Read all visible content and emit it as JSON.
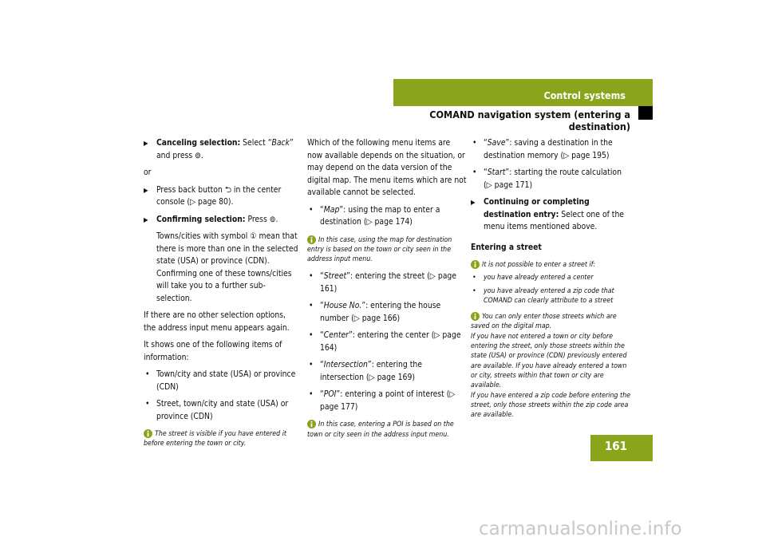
{
  "header": {
    "section": "Control systems",
    "subtitle": "COMAND navigation system (entering a destination)"
  },
  "page_number": "161",
  "watermark": "carmanualsonline.info",
  "columns": [
    {
      "blocks": [
        {
          "parts": [
            "Canceling selection:",
            " Select “",
            "Back",
            "” and press ⊚."
          ]
        },
        {
          "parts": [
            "or"
          ]
        },
        {
          "parts": [
            "Press back button ⮌ in the center console (▷ page 80)."
          ]
        },
        {
          "parts": [
            "Confirming selection:",
            " Press ⊚."
          ]
        },
        {
          "parts": [
            "Towns/cities with symbol ① mean that there is more than one in the selected state (USA) or province (CDN). Confirming one of these towns/cities will take you to a further sub-selection."
          ]
        },
        {
          "parts": [
            "If there are no other selection options, the address input menu appears again."
          ]
        },
        {
          "parts": [
            "It shows one of the following items of information:"
          ]
        },
        {
          "parts": [
            "Town/city and state (USA) or province (CDN)"
          ]
        },
        {
          "parts": [
            "Street, town/city and state (USA) or province (CDN)"
          ]
        },
        {
          "parts": [
            "The street is visible if you have entered it before entering the town or city."
          ]
        }
      ]
    },
    {
      "blocks": [
        {
          "parts": [
            "Which of the following menu items are now available depends on the situation, or may depend on the data version of the digital map. The menu items which are not available cannot be selected."
          ]
        },
        {
          "parts": [
            "“",
            "Map",
            "”: using the map to enter a destination (▷ page 174)"
          ]
        },
        {
          "parts": [
            "In this case, using the map for destination entry is based on the town or city seen in the address input menu."
          ]
        },
        {
          "parts": [
            "“",
            "Street",
            "”: entering the street (▷ page 161)"
          ]
        },
        {
          "parts": [
            "“",
            "House No.",
            "”: entering the house number (▷ page 166)"
          ]
        },
        {
          "parts": [
            "“",
            "Center",
            "”: entering the center (▷ page 164)"
          ]
        },
        {
          "parts": [
            "“",
            "Intersection",
            "”: entering the intersection (▷ page 169)"
          ]
        },
        {
          "parts": [
            "“",
            "POI",
            "”: entering a point of interest (▷ page 177)"
          ]
        },
        {
          "parts": [
            "In this case, entering a POI is based on the town or city seen in the address input menu."
          ]
        }
      ]
    },
    {
      "blocks": [
        {
          "parts": [
            "“",
            "Save",
            "”: saving a destination in the destination memory (▷ page 195)"
          ]
        },
        {
          "parts": [
            "“",
            "Start",
            "”: starting the route calculation (▷ page 171)"
          ]
        },
        {
          "parts": [
            "Continuing or completing destination entry:",
            " Select one of the menu items mentioned above."
          ]
        },
        {
          "parts": [
            "Entering a street"
          ]
        },
        {
          "parts": [
            "It is not possible to enter a street if:"
          ]
        },
        {
          "parts": [
            "you have already entered a center"
          ]
        },
        {
          "parts": [
            "you have already entered a zip code that COMAND can clearly attribute to a street"
          ]
        },
        {
          "parts": [
            "You can only enter those streets which are saved on the digital map.",
            "If you have not entered a town or city before entering the street, only those streets within the state (USA) or province (CDN) previously entered are available. If you have already entered a town or city, streets within that town or city are available.",
            "If you have entered a zip code before entering the street, only those streets within the zip code area are available."
          ]
        }
      ]
    }
  ]
}
